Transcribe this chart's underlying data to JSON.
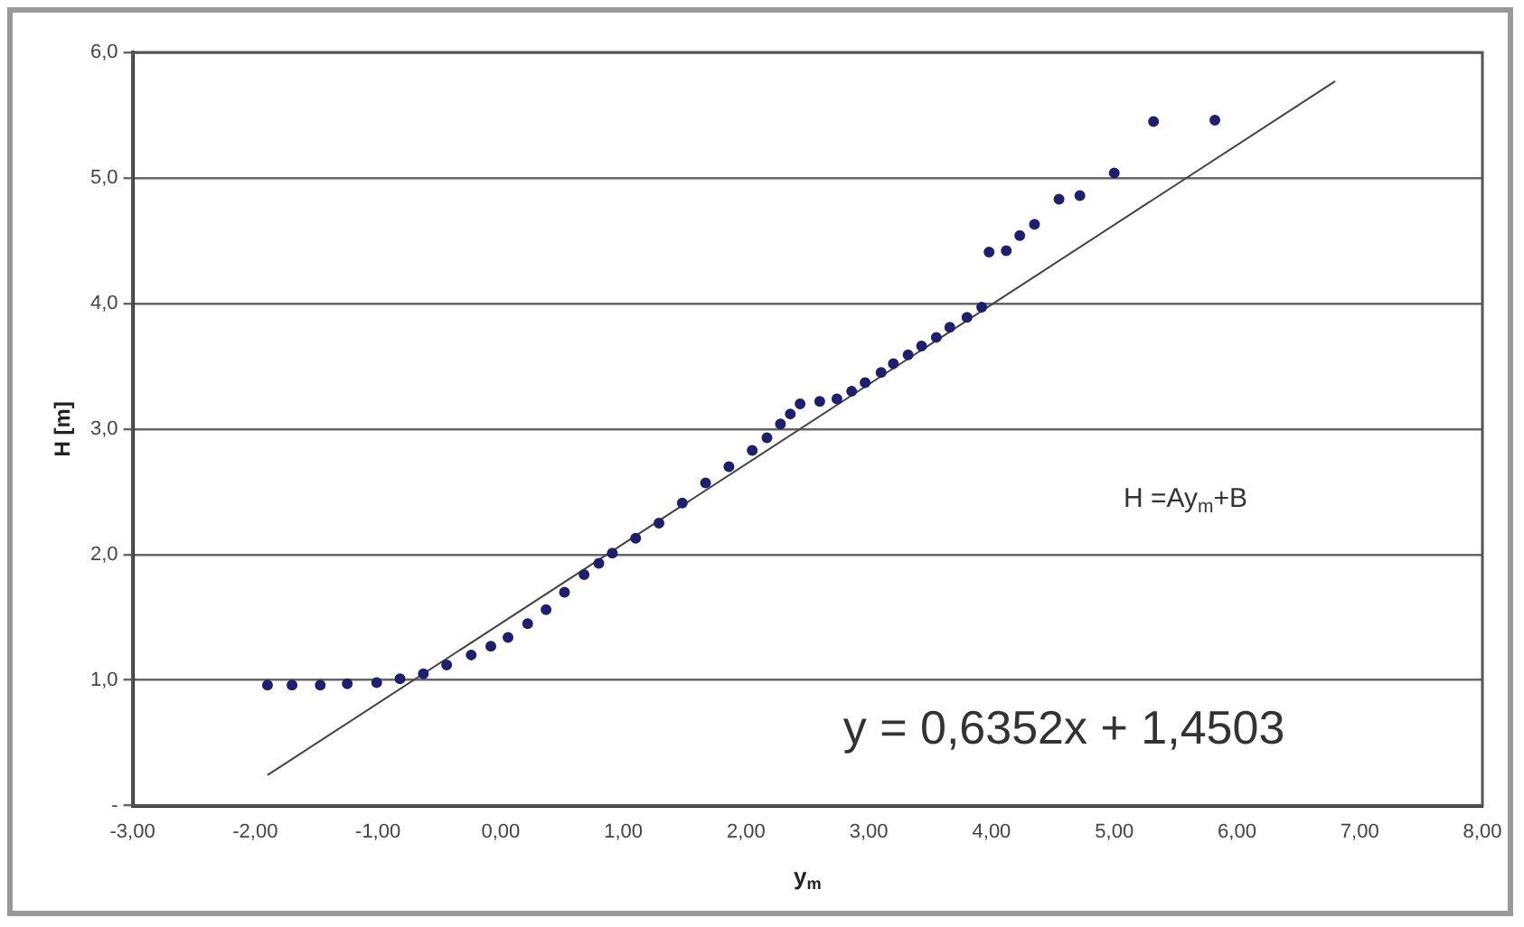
{
  "chart_data": {
    "type": "scatter",
    "xlabel": "y$_{m}$",
    "ylabel": "H [m]",
    "xlim": [
      -3,
      8
    ],
    "ylim": [
      0,
      6
    ],
    "xticks": [
      {
        "value": -3,
        "label": "-3,00"
      },
      {
        "value": -2,
        "label": "-2,00"
      },
      {
        "value": -1,
        "label": "-1,00"
      },
      {
        "value": 0,
        "label": "0,00"
      },
      {
        "value": 1,
        "label": "1,00"
      },
      {
        "value": 2,
        "label": "2,00"
      },
      {
        "value": 3,
        "label": "3,00"
      },
      {
        "value": 4,
        "label": "4,00"
      },
      {
        "value": 5,
        "label": "5,00"
      },
      {
        "value": 6,
        "label": "6,00"
      },
      {
        "value": 7,
        "label": "7,00"
      },
      {
        "value": 8,
        "label": "8,00"
      }
    ],
    "yticks": [
      {
        "value": 0,
        "label": "-"
      },
      {
        "value": 1,
        "label": "1,0"
      },
      {
        "value": 2,
        "label": "2,0"
      },
      {
        "value": 3,
        "label": "3,0"
      },
      {
        "value": 4,
        "label": "4,0"
      },
      {
        "value": 5,
        "label": "5,0"
      },
      {
        "value": 6,
        "label": "6,0"
      }
    ],
    "grid": "y",
    "legend": false,
    "marker": "circle",
    "series": [
      {
        "color": "#1f1f70",
        "x": [
          -1.9,
          -1.7,
          -1.47,
          -1.25,
          -1.01,
          -0.82,
          -0.63,
          -0.44,
          -0.24,
          -0.08,
          0.06,
          0.22,
          0.37,
          0.52,
          0.68,
          0.8,
          0.91,
          1.1,
          1.29,
          1.48,
          1.67,
          1.86,
          2.05,
          2.17,
          2.28,
          2.36,
          2.44,
          2.6,
          2.74,
          2.86,
          2.97,
          3.1,
          3.2,
          3.32,
          3.43,
          3.55,
          3.66,
          3.8,
          3.92,
          3.98,
          4.12,
          4.23,
          4.35,
          4.55,
          4.72,
          5.0,
          5.32,
          5.82
        ],
        "values": [
          0.96,
          0.96,
          0.96,
          0.97,
          0.98,
          1.01,
          1.05,
          1.12,
          1.2,
          1.27,
          1.34,
          1.45,
          1.56,
          1.7,
          1.84,
          1.93,
          2.01,
          2.13,
          2.25,
          2.41,
          2.57,
          2.7,
          2.83,
          2.93,
          3.04,
          3.12,
          3.2,
          3.22,
          3.24,
          3.3,
          3.37,
          3.45,
          3.52,
          3.59,
          3.66,
          3.73,
          3.81,
          3.89,
          3.97,
          4.41,
          4.42,
          4.54,
          4.63,
          4.83,
          4.86,
          5.04,
          5.45,
          5.46
        ]
      },
      {
        "type": "line",
        "color": "#444444",
        "marker": "none",
        "x": [
          -1.9,
          6.8
        ],
        "values": [
          0.243,
          5.77
        ]
      }
    ],
    "annotations": [
      "H =Ay$_{m}$+B",
      "y = 0,6352x + 1,4503"
    ]
  }
}
